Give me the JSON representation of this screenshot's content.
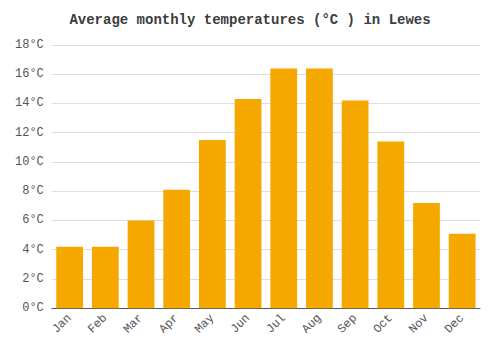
{
  "chart_data": {
    "type": "bar",
    "title": "Average monthly temperatures (°C ) in Lewes",
    "categories": [
      "Jan",
      "Feb",
      "Mar",
      "Apr",
      "May",
      "Jun",
      "Jul",
      "Aug",
      "Sep",
      "Oct",
      "Nov",
      "Dec"
    ],
    "values": [
      4.2,
      4.2,
      6.0,
      8.1,
      11.5,
      14.3,
      16.4,
      16.4,
      14.2,
      11.4,
      7.2,
      5.1
    ],
    "color": "#F5A800",
    "ylim": [
      0,
      18
    ],
    "yticks": [
      {
        "value": 0,
        "label": "0°C"
      },
      {
        "value": 2,
        "label": "2°C"
      },
      {
        "value": 4,
        "label": "4°C"
      },
      {
        "value": 6,
        "label": "6°C"
      },
      {
        "value": 8,
        "label": "8°C"
      },
      {
        "value": 10,
        "label": "10°C"
      },
      {
        "value": 12,
        "label": "12°C"
      },
      {
        "value": 14,
        "label": "14°C"
      },
      {
        "value": 16,
        "label": "16°C"
      },
      {
        "value": 18,
        "label": "18°C"
      }
    ],
    "grid": true
  }
}
